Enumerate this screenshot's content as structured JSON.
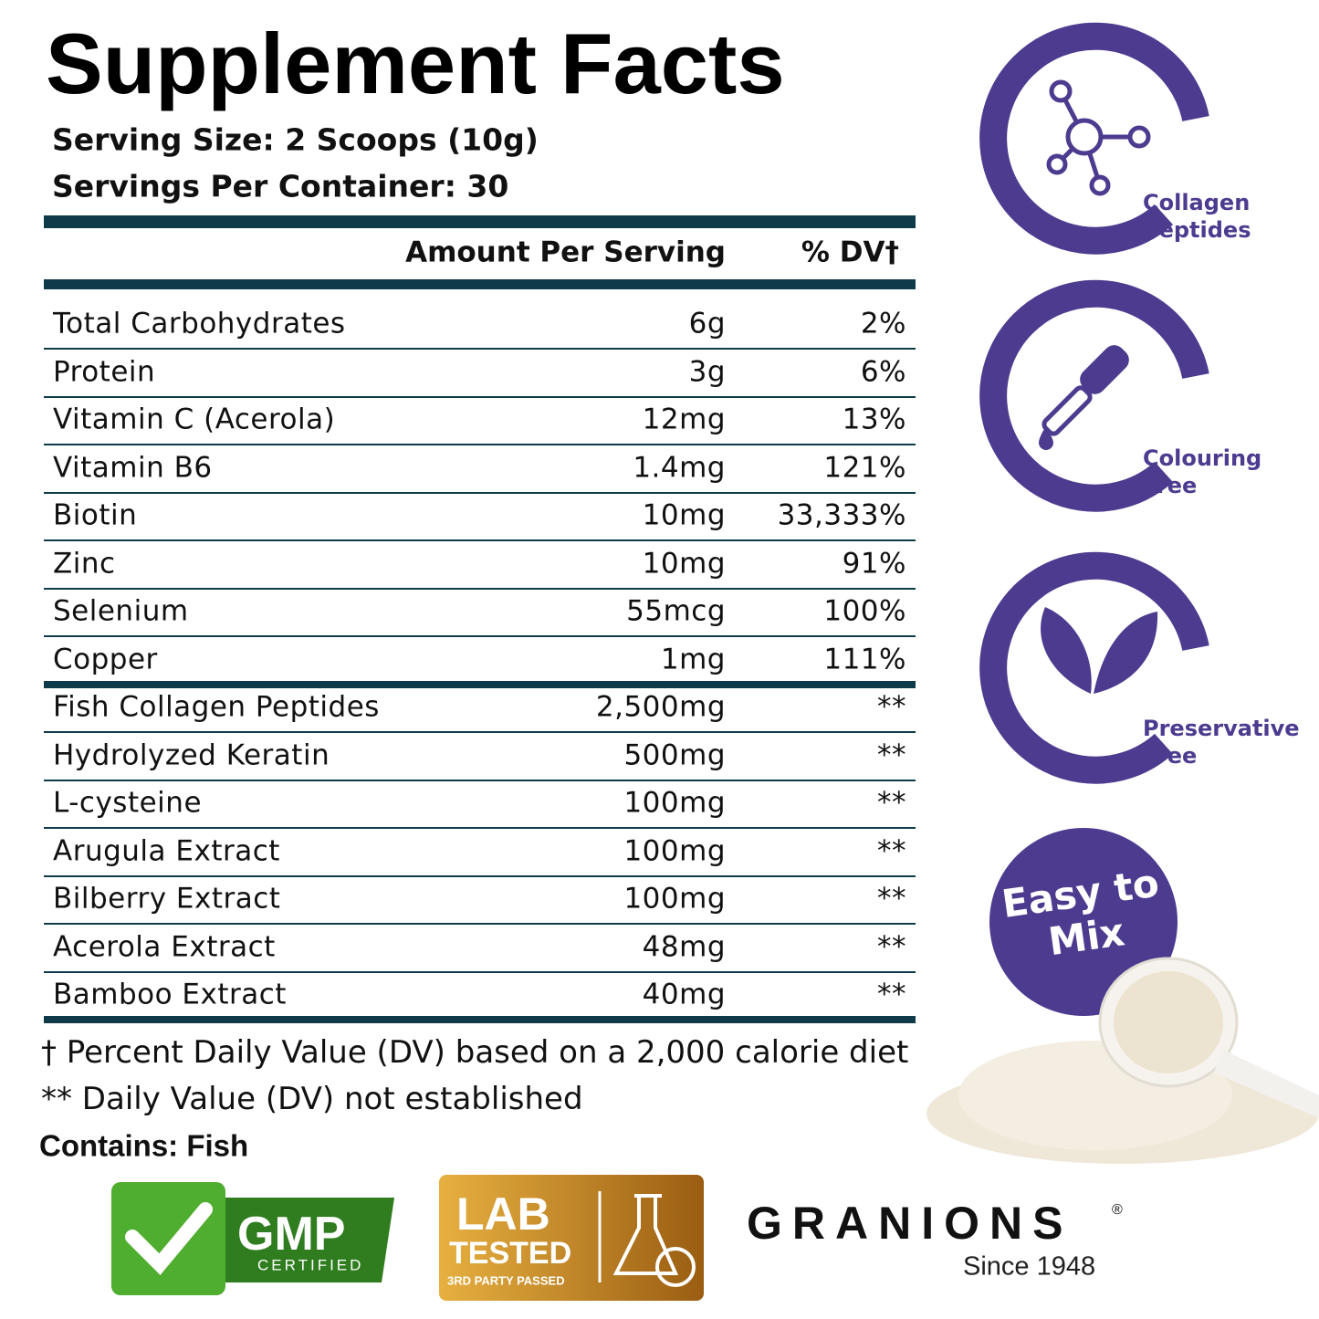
{
  "header": {
    "title": "Supplement Facts",
    "serving_size": "Serving Size: 2 Scoops (10g)",
    "servings_per_container": "Servings Per Container: 30"
  },
  "table": {
    "columns": [
      "Amount Per Serving",
      "% DV†"
    ],
    "rows": [
      [
        "Total Carbohydrates",
        "6g",
        "2%"
      ],
      [
        "Protein",
        "3g",
        "6%"
      ],
      [
        "Vitamin C (Acerola)",
        "12mg",
        "13%"
      ],
      [
        "Vitamin B6",
        "1.4mg",
        "121%"
      ],
      [
        "Biotin",
        "10mg",
        "33,333%"
      ],
      [
        "Zinc",
        "10mg",
        "91%"
      ],
      [
        "Selenium",
        "55mcg",
        "100%"
      ],
      [
        "Copper",
        "1mg",
        "111%"
      ],
      [
        "Fish Collagen Peptides",
        "2,500mg",
        "**"
      ],
      [
        "Hydrolyzed Keratin",
        "500mg",
        "**"
      ],
      [
        "L-cysteine",
        "100mg",
        "**"
      ],
      [
        "Arugula Extract",
        "100mg",
        "**"
      ],
      [
        "Bilberry Extract",
        "100mg",
        "**"
      ],
      [
        "Acerola Extract",
        "48mg",
        "**"
      ],
      [
        "Bamboo Extract",
        "40mg",
        "**"
      ]
    ]
  },
  "footnotes": [
    "† Percent Daily Value (DV) based on a 2,000 calorie diet",
    "** Daily Value (DV) not established"
  ],
  "contains": "Contains: Fish",
  "features": [
    "Collagen Peptides",
    "Colouring Free",
    "Preservative Free"
  ],
  "mix_badge": "Easy to Mix",
  "gmp": {
    "title": "GMP",
    "subtitle": "CERTIFIED"
  },
  "lab": {
    "line1": "LAB",
    "line2": "TESTED",
    "line3": "3RD PARTY PASSED"
  },
  "brand": {
    "name": "GRANIONS",
    "mark": "®",
    "since": "Since 1948"
  }
}
